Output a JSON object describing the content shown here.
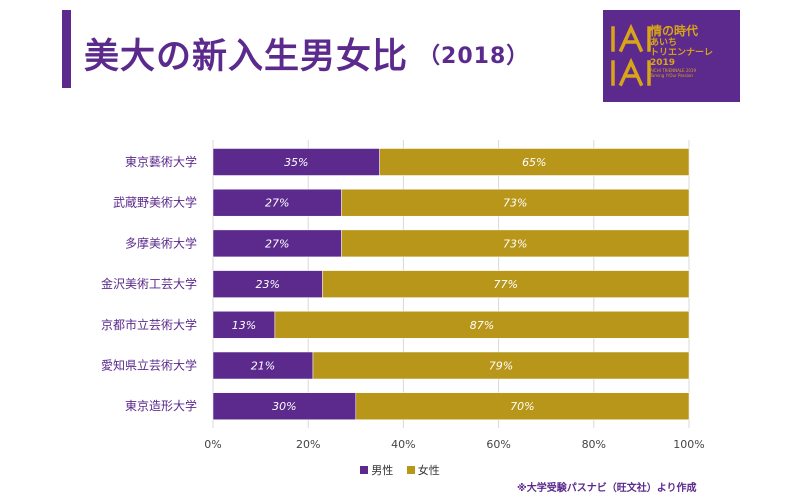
{
  "title": {
    "main": "美大の新入生男女比",
    "year": "（2018）"
  },
  "logo": {
    "line1": "情の時代",
    "line2": "あいち",
    "line3": "トリエンナーレ",
    "line4": "2019",
    "line5": "AICHI TRIENNALE 2019",
    "line6": "Taming Y/Our Passion"
  },
  "colors": {
    "male": "#5b2a8c",
    "female": "#b8961a",
    "accent": "#5b2a8c"
  },
  "chart_data": {
    "type": "bar",
    "orientation": "horizontal",
    "stacked": true,
    "categories": [
      "東京藝術大学",
      "武蔵野美術大学",
      "多摩美術大学",
      "金沢美術工芸大学",
      "京都市立芸術大学",
      "愛知県立芸術大学",
      "東京造形大学"
    ],
    "series": [
      {
        "name": "男性",
        "values": [
          35,
          27,
          27,
          23,
          13,
          21,
          30
        ],
        "labels": [
          "35%",
          "27%",
          "27%",
          "23%",
          "13%",
          "21%",
          "30%"
        ]
      },
      {
        "name": "女性",
        "values": [
          65,
          73,
          73,
          77,
          87,
          79,
          70
        ],
        "labels": [
          "65%",
          "73%",
          "73%",
          "77%",
          "87%",
          "79%",
          "70%"
        ]
      }
    ],
    "xlim": [
      0,
      100
    ],
    "xticks": [
      "0%",
      "20%",
      "40%",
      "60%",
      "80%",
      "100%"
    ],
    "grid": true,
    "legend": "bottom"
  },
  "source": "※大学受験パスナビ（旺文社）より作成"
}
